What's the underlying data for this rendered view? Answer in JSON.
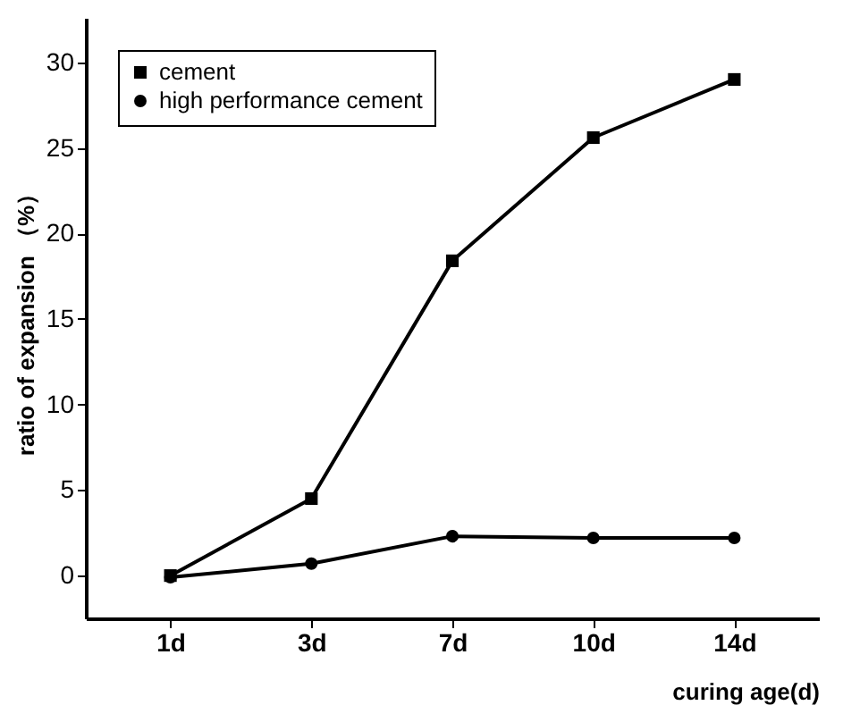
{
  "chart_data": {
    "type": "line",
    "xlabel": "curing age(d)",
    "ylabel": "ratio of expansion （%）",
    "categories": [
      "1d",
      "3d",
      "7d",
      "10d",
      "14d"
    ],
    "series": [
      {
        "name": "cement",
        "color": "#000000",
        "marker": "square",
        "values": [
          0.0,
          4.5,
          18.4,
          25.6,
          29.0
        ]
      },
      {
        "name": "high performance cement",
        "color": "#000000",
        "marker": "circle",
        "values": [
          -0.1,
          0.7,
          2.3,
          2.2,
          2.2
        ]
      }
    ],
    "ylim": [
      -2.5,
      32.6
    ],
    "yticks": [
      0,
      5,
      10,
      15,
      20,
      25,
      30
    ],
    "grid": false,
    "legend": "top left",
    "line_style": "solid"
  }
}
